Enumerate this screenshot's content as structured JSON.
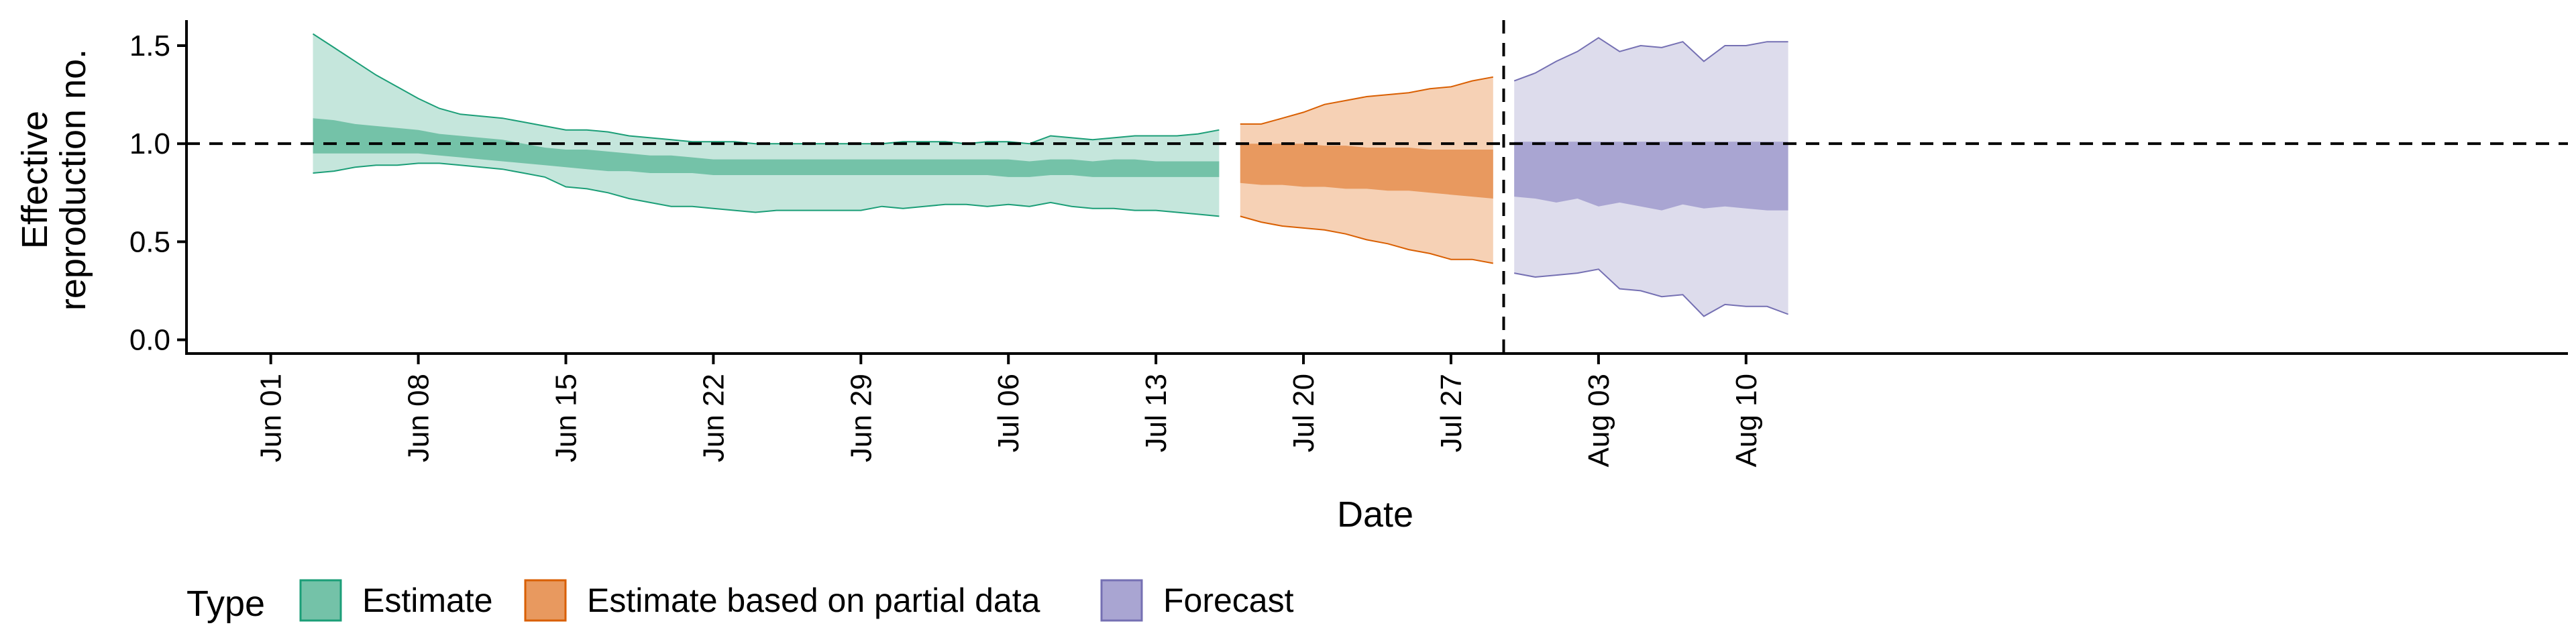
{
  "chart_data": {
    "type": "area",
    "title": "",
    "xlabel": "Date",
    "ylabel": [
      "Effective",
      "reproduction no."
    ],
    "ylim": [
      -0.07,
      1.63
    ],
    "xlim": [
      -4,
      109
    ],
    "x_unit": "days since Jun 01",
    "y_ticks": [
      {
        "value": 0.0,
        "label": "0.0"
      },
      {
        "value": 0.5,
        "label": "0.5"
      },
      {
        "value": 1.0,
        "label": "1.0"
      },
      {
        "value": 1.5,
        "label": "1.5"
      }
    ],
    "x_ticks": [
      {
        "day": 0,
        "label": "Jun 01"
      },
      {
        "day": 7,
        "label": "Jun 08"
      },
      {
        "day": 14,
        "label": "Jun 15"
      },
      {
        "day": 21,
        "label": "Jun 22"
      },
      {
        "day": 28,
        "label": "Jun 29"
      },
      {
        "day": 35,
        "label": "Jul 06"
      },
      {
        "day": 42,
        "label": "Jul 13"
      },
      {
        "day": 49,
        "label": "Jul 20"
      },
      {
        "day": 56,
        "label": "Jul 27"
      },
      {
        "day": 63,
        "label": "Aug 03"
      },
      {
        "day": 70,
        "label": "Aug 10"
      }
    ],
    "reference_lines": {
      "horizontal_y": 1.0,
      "vertical_day": 58
    },
    "legend_title": "Type",
    "series": [
      {
        "name": "Estimate",
        "fill_outer": "#c5e6dc",
        "fill_inner": "#74c2a8",
        "stroke": "#1b9e77",
        "x": [
          2,
          3,
          4,
          5,
          6,
          7,
          8,
          9,
          10,
          11,
          12,
          13,
          14,
          15,
          16,
          17,
          18,
          19,
          20,
          21,
          22,
          23,
          24,
          25,
          26,
          27,
          28,
          29,
          30,
          31,
          32,
          33,
          34,
          35,
          36,
          37,
          38,
          39,
          40,
          41,
          42,
          43,
          44,
          45
        ],
        "outer_upper": [
          1.56,
          1.49,
          1.42,
          1.35,
          1.29,
          1.23,
          1.18,
          1.15,
          1.14,
          1.13,
          1.11,
          1.09,
          1.07,
          1.07,
          1.06,
          1.04,
          1.03,
          1.02,
          1.01,
          1.01,
          1.01,
          1.0,
          1.0,
          1.0,
          1.0,
          1.0,
          1.0,
          1.0,
          1.01,
          1.01,
          1.01,
          1.0,
          1.01,
          1.01,
          1.0,
          1.04,
          1.03,
          1.02,
          1.03,
          1.04,
          1.04,
          1.04,
          1.05,
          1.07
        ],
        "inner_upper": [
          1.13,
          1.12,
          1.1,
          1.09,
          1.08,
          1.07,
          1.05,
          1.04,
          1.03,
          1.02,
          1.0,
          0.98,
          0.97,
          0.97,
          0.96,
          0.95,
          0.94,
          0.94,
          0.93,
          0.92,
          0.92,
          0.92,
          0.92,
          0.92,
          0.92,
          0.92,
          0.92,
          0.92,
          0.92,
          0.92,
          0.92,
          0.92,
          0.92,
          0.92,
          0.91,
          0.92,
          0.92,
          0.91,
          0.92,
          0.92,
          0.91,
          0.91,
          0.91,
          0.91
        ],
        "inner_lower": [
          0.95,
          0.95,
          0.95,
          0.95,
          0.95,
          0.95,
          0.94,
          0.93,
          0.92,
          0.91,
          0.9,
          0.89,
          0.88,
          0.87,
          0.86,
          0.86,
          0.85,
          0.85,
          0.85,
          0.84,
          0.84,
          0.84,
          0.84,
          0.84,
          0.84,
          0.84,
          0.84,
          0.84,
          0.84,
          0.84,
          0.84,
          0.84,
          0.84,
          0.83,
          0.83,
          0.84,
          0.84,
          0.83,
          0.83,
          0.83,
          0.83,
          0.83,
          0.83,
          0.83
        ],
        "outer_lower": [
          0.85,
          0.86,
          0.88,
          0.89,
          0.89,
          0.9,
          0.9,
          0.89,
          0.88,
          0.87,
          0.85,
          0.83,
          0.78,
          0.77,
          0.75,
          0.72,
          0.7,
          0.68,
          0.68,
          0.67,
          0.66,
          0.65,
          0.66,
          0.66,
          0.66,
          0.66,
          0.66,
          0.68,
          0.67,
          0.68,
          0.69,
          0.69,
          0.68,
          0.69,
          0.68,
          0.7,
          0.68,
          0.67,
          0.67,
          0.66,
          0.66,
          0.65,
          0.64,
          0.63
        ]
      },
      {
        "name": "Estimate based on partial data",
        "fill_outer": "#f6d1b5",
        "fill_inner": "#e8995f",
        "stroke": "#d95f02",
        "x": [
          46,
          47,
          48,
          49,
          50,
          51,
          52,
          53,
          54,
          55,
          56,
          57,
          58
        ],
        "outer_upper": [
          1.1,
          1.1,
          1.13,
          1.16,
          1.2,
          1.22,
          1.24,
          1.25,
          1.26,
          1.28,
          1.29,
          1.32,
          1.34
        ],
        "inner_upper": [
          1.0,
          1.0,
          1.0,
          1.0,
          0.99,
          0.99,
          0.98,
          0.98,
          0.98,
          0.97,
          0.97,
          0.97,
          0.97
        ],
        "inner_lower": [
          0.8,
          0.79,
          0.79,
          0.78,
          0.78,
          0.77,
          0.77,
          0.76,
          0.76,
          0.75,
          0.74,
          0.73,
          0.72
        ],
        "outer_lower": [
          0.63,
          0.6,
          0.58,
          0.57,
          0.56,
          0.54,
          0.51,
          0.49,
          0.46,
          0.44,
          0.41,
          0.41,
          0.39
        ]
      },
      {
        "name": "Forecast",
        "fill_outer": "#dddcec",
        "fill_inner": "#a9a5d2",
        "stroke": "#7570b3",
        "x": [
          59,
          60,
          61,
          62,
          63,
          64,
          65,
          66,
          67,
          68,
          69,
          70,
          71,
          72
        ],
        "outer_upper": [
          1.32,
          1.36,
          1.42,
          1.47,
          1.54,
          1.47,
          1.5,
          1.49,
          1.52,
          1.42,
          1.5,
          1.5,
          1.52,
          1.52
        ],
        "inner_upper": [
          1.01,
          1.01,
          1.01,
          1.01,
          1.01,
          1.01,
          1.01,
          1.01,
          1.01,
          1.01,
          1.01,
          1.01,
          1.01,
          1.01
        ],
        "inner_lower": [
          0.73,
          0.72,
          0.7,
          0.72,
          0.68,
          0.7,
          0.68,
          0.66,
          0.69,
          0.67,
          0.68,
          0.67,
          0.66,
          0.66
        ],
        "outer_lower": [
          0.34,
          0.32,
          0.33,
          0.34,
          0.36,
          0.26,
          0.25,
          0.22,
          0.23,
          0.12,
          0.18,
          0.17,
          0.17,
          0.13
        ]
      }
    ]
  }
}
